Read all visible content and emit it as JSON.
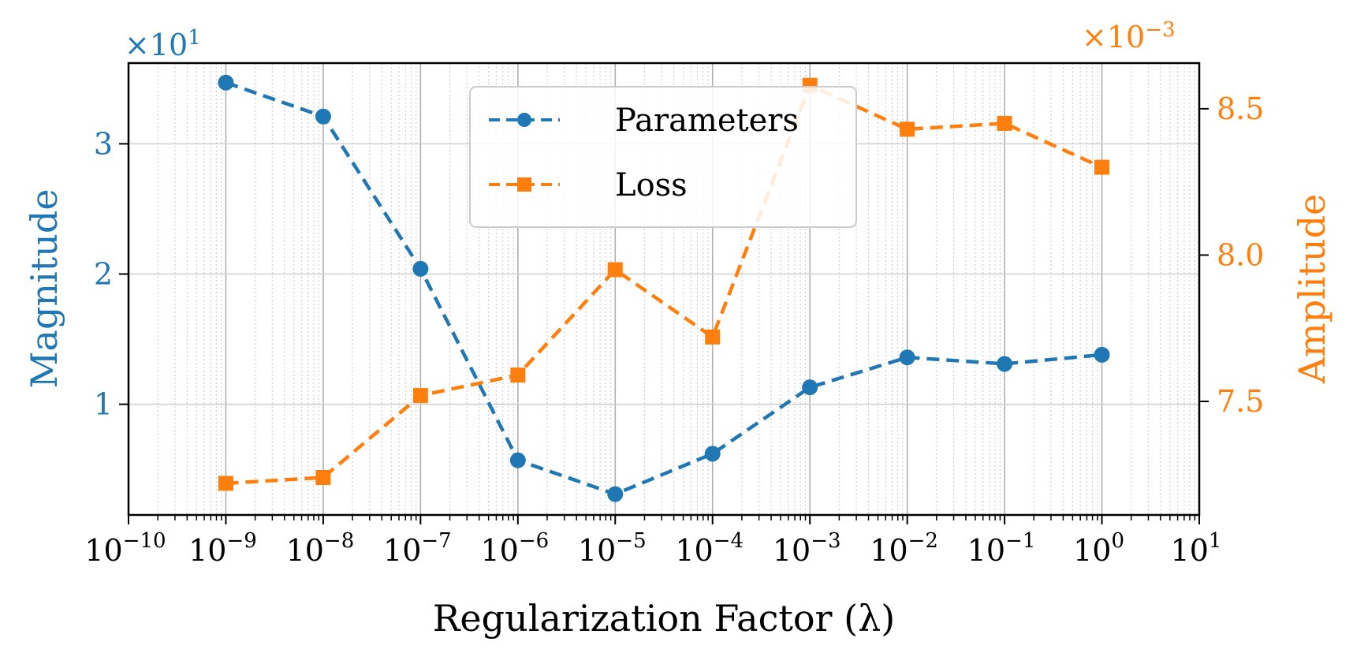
{
  "chart_data": {
    "type": "line",
    "x_scale": "log",
    "xlabel": "Regularization Factor (λ)",
    "xlim_exponents": [
      -10,
      1
    ],
    "x_tick_exponents": [
      -10,
      -9,
      -8,
      -7,
      -6,
      -5,
      -4,
      -3,
      -2,
      -1,
      0,
      1
    ],
    "y_left": {
      "label": "Magnitude",
      "multiplier_base": "×10",
      "multiplier_exp": "1",
      "ylim": [
        0.15,
        3.62
      ],
      "ticks": [
        1,
        2,
        3
      ],
      "color": "#1f77b4"
    },
    "y_right": {
      "label": "Amplitude",
      "multiplier_base": "×10",
      "multiplier_exp": "−3",
      "ylim": [
        7.112,
        8.656
      ],
      "ticks": [
        "7.5",
        "8.0",
        "8.5"
      ],
      "color": "#ff7f0e"
    },
    "series": [
      {
        "name": "Parameters",
        "axis": "left",
        "color": "#1f77b4",
        "marker": "circle",
        "linestyle": "dashed",
        "x_exponents": [
          -9,
          -8,
          -7,
          -6,
          -5,
          -4,
          -3,
          -2,
          -1,
          0
        ],
        "values": [
          3.47,
          3.21,
          2.04,
          0.57,
          0.31,
          0.62,
          1.13,
          1.36,
          1.31,
          1.38
        ]
      },
      {
        "name": "Loss",
        "axis": "right",
        "color": "#ff7f0e",
        "marker": "square",
        "linestyle": "dashed",
        "x_exponents": [
          -9,
          -8,
          -7,
          -6,
          -5,
          -4,
          -3,
          -2,
          -1,
          0
        ],
        "values": [
          7.22,
          7.24,
          7.52,
          7.59,
          7.95,
          7.72,
          8.58,
          8.43,
          8.45,
          8.3
        ]
      }
    ],
    "grid": true,
    "legend_position": "upper-center"
  }
}
